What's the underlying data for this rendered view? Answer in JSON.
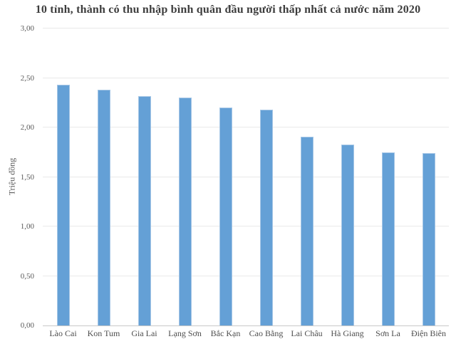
{
  "chart_data": {
    "type": "bar",
    "title": "10 tỉnh, thành có thu nhập bình quân đầu người thấp nhất cả nước năm 2020",
    "xlabel": "",
    "ylabel": "Triệu đồng",
    "categories": [
      "Lào Cai",
      "Kon Tum",
      "Gia Lai",
      "Lạng Sơn",
      "Bắc Kạn",
      "Cao Bằng",
      "Lai Châu",
      "Hà Giang",
      "Sơn La",
      "Điện Biên"
    ],
    "values": [
      2.43,
      2.38,
      2.32,
      2.3,
      2.2,
      2.18,
      1.91,
      1.83,
      1.75,
      1.74
    ],
    "ylim": [
      0,
      3
    ],
    "ytick_step": 0.5,
    "ytick_labels": [
      "0,00",
      "0,50",
      "1,00",
      "1,50",
      "2,00",
      "2,50",
      "3,00"
    ],
    "grid": true,
    "legend": "none",
    "colors": {
      "bar": "#64a0d6",
      "bar_edge": "#a5c6e6",
      "gridline": "#e9e9e9",
      "axis_line": "#c9c9c9",
      "tick_text": "#595959",
      "category_text": "#4d4d4d",
      "title_text": "#3d3d3d",
      "background": "#ffffff"
    }
  }
}
